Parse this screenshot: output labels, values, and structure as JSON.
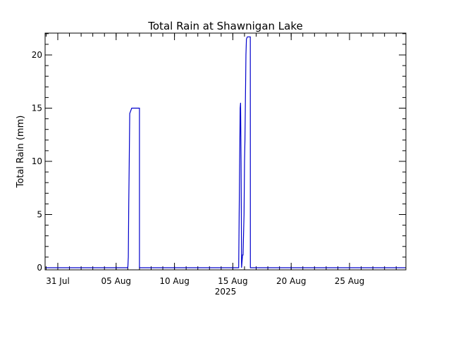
{
  "chart_data": {
    "type": "line",
    "title": "Total Rain at Shawnigan Lake",
    "ylabel": "Total Rain (mm)",
    "xlabel": "",
    "year_label": "2025",
    "x_ticks": [
      "31 Jul",
      "05 Aug",
      "10 Aug",
      "15 Aug",
      "20 Aug",
      "25 Aug"
    ],
    "y_ticks": [
      "0",
      "5",
      "10",
      "15",
      "20"
    ],
    "ylim": [
      0,
      22
    ],
    "xlim": [
      "2025-07-30",
      "2025-08-30"
    ],
    "grid": false,
    "line_color": "#0000cc",
    "series": [
      {
        "x": [
          "2025-07-30 00:00",
          "2025-08-06 00:00",
          "2025-08-06 01:00",
          "2025-08-06 02:00",
          "2025-08-06 03:00",
          "2025-08-06 04:00",
          "2025-08-06 08:00",
          "2025-08-06 12:00",
          "2025-08-07 00:00",
          "2025-08-07 00:01",
          "2025-08-15 12:00",
          "2025-08-15 13:00",
          "2025-08-15 14:00",
          "2025-08-15 15:00",
          "2025-08-15 16:00",
          "2025-08-15 17:00",
          "2025-08-15 18:00",
          "2025-08-15 18:01",
          "2025-08-15 20:00",
          "2025-08-15 21:00",
          "2025-08-15 23:00",
          "2025-08-16 00:00",
          "2025-08-16 01:00",
          "2025-08-16 02:00",
          "2025-08-16 03:00",
          "2025-08-16 04:00",
          "2025-08-16 06:00",
          "2025-08-16 09:00",
          "2025-08-16 12:00",
          "2025-08-16 12:01",
          "2025-08-30 00:00"
        ],
        "y": [
          0,
          0,
          1,
          6,
          10,
          14.5,
          15,
          15,
          15,
          0,
          0,
          5,
          10,
          15,
          15.5,
          10,
          0,
          0,
          1.2,
          1.2,
          5,
          10,
          12,
          16,
          20,
          21.5,
          21.7,
          21.7,
          21.7,
          0,
          0
        ]
      }
    ]
  }
}
